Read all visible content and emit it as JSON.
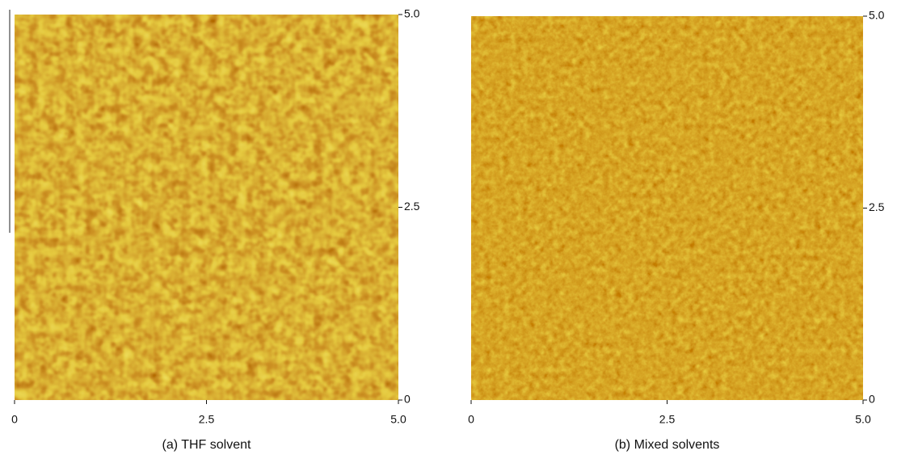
{
  "chart_data": [
    {
      "type": "image",
      "caption": "(a) THF solvent",
      "xlim": [
        0,
        5
      ],
      "xticks": [
        0,
        2.5,
        {
          "value": 5,
          "label": "5.0"
        }
      ],
      "ylim": [
        0,
        5
      ],
      "yticks": [
        0,
        2.5,
        {
          "value": 5,
          "label": "5.0"
        }
      ]
    },
    {
      "type": "image",
      "caption": "(b) Mixed solvents",
      "xlim": [
        0,
        5
      ],
      "xticks": [
        0,
        2.5,
        {
          "value": 5,
          "label": "5.0"
        }
      ],
      "ylim": [
        0,
        5
      ],
      "yticks": [
        0,
        2.5,
        {
          "value": 5,
          "label": "5.0"
        }
      ]
    }
  ]
}
